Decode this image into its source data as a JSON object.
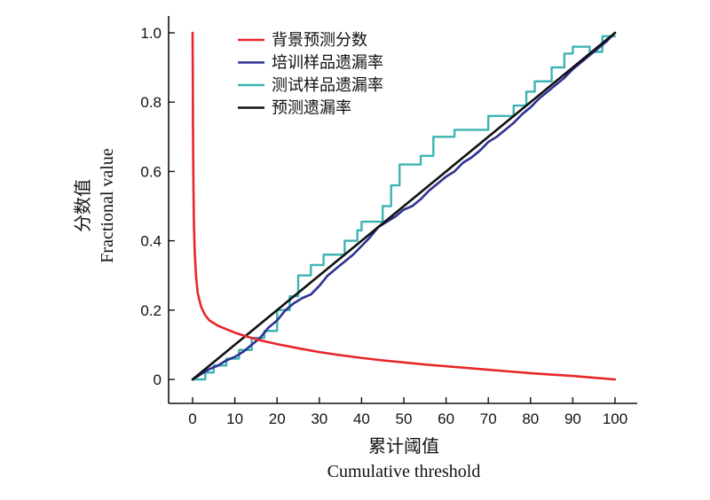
{
  "chart_data": {
    "type": "line",
    "xlabel_cn": "累计阈值",
    "xlabel_en": "Cumulative threshold",
    "ylabel_cn": "分数值",
    "ylabel_en": "Fractional value",
    "xlim": [
      0,
      100
    ],
    "ylim": [
      0,
      1.0
    ],
    "x_ticks": [
      0,
      10,
      20,
      30,
      40,
      50,
      60,
      70,
      80,
      90,
      100
    ],
    "x_tick_labels": [
      "0",
      "10",
      "20",
      "30",
      "40",
      "50",
      "60",
      "70",
      "80",
      "90",
      "100"
    ],
    "y_ticks": [
      0,
      0.2,
      0.4,
      0.6,
      0.8,
      1.0
    ],
    "y_tick_labels": [
      "0",
      "0.2",
      "0.4",
      "0.6",
      "0.8",
      "1.0"
    ],
    "grid": false,
    "legend_position": "top-left",
    "series": [
      {
        "name": "背景预测分数",
        "color": "#e8262a",
        "points": [
          [
            0,
            1.0
          ],
          [
            0.05,
            0.88
          ],
          [
            0.1,
            0.72
          ],
          [
            0.2,
            0.56
          ],
          [
            0.3,
            0.46
          ],
          [
            0.5,
            0.37
          ],
          [
            0.8,
            0.3
          ],
          [
            1.2,
            0.25
          ],
          [
            2,
            0.21
          ],
          [
            3,
            0.185
          ],
          [
            4,
            0.17
          ],
          [
            6,
            0.155
          ],
          [
            8,
            0.145
          ],
          [
            10,
            0.135
          ],
          [
            13,
            0.123
          ],
          [
            16,
            0.113
          ],
          [
            20,
            0.102
          ],
          [
            25,
            0.09
          ],
          [
            30,
            0.079
          ],
          [
            35,
            0.07
          ],
          [
            40,
            0.062
          ],
          [
            45,
            0.055
          ],
          [
            50,
            0.049
          ],
          [
            55,
            0.043
          ],
          [
            60,
            0.038
          ],
          [
            65,
            0.033
          ],
          [
            70,
            0.028
          ],
          [
            75,
            0.023
          ],
          [
            80,
            0.018
          ],
          [
            85,
            0.014
          ],
          [
            90,
            0.01
          ],
          [
            95,
            0.005
          ],
          [
            100,
            0.0
          ]
        ]
      },
      {
        "name": "培训样品遗漏率",
        "color": "#2e3192",
        "points": [
          [
            0,
            0
          ],
          [
            2,
            0.015
          ],
          [
            4,
            0.03
          ],
          [
            6,
            0.04
          ],
          [
            8,
            0.055
          ],
          [
            10,
            0.065
          ],
          [
            12,
            0.08
          ],
          [
            14,
            0.1
          ],
          [
            16,
            0.12
          ],
          [
            18,
            0.15
          ],
          [
            20,
            0.17
          ],
          [
            22,
            0.2
          ],
          [
            24,
            0.22
          ],
          [
            26,
            0.235
          ],
          [
            28,
            0.245
          ],
          [
            30,
            0.27
          ],
          [
            32,
            0.3
          ],
          [
            34,
            0.32
          ],
          [
            36,
            0.34
          ],
          [
            38,
            0.36
          ],
          [
            40,
            0.385
          ],
          [
            42,
            0.41
          ],
          [
            44,
            0.44
          ],
          [
            46,
            0.455
          ],
          [
            48,
            0.47
          ],
          [
            50,
            0.49
          ],
          [
            52,
            0.5
          ],
          [
            54,
            0.52
          ],
          [
            56,
            0.545
          ],
          [
            58,
            0.565
          ],
          [
            60,
            0.585
          ],
          [
            62,
            0.6
          ],
          [
            64,
            0.625
          ],
          [
            66,
            0.64
          ],
          [
            68,
            0.66
          ],
          [
            70,
            0.685
          ],
          [
            72,
            0.7
          ],
          [
            74,
            0.72
          ],
          [
            76,
            0.74
          ],
          [
            78,
            0.765
          ],
          [
            80,
            0.785
          ],
          [
            82,
            0.81
          ],
          [
            84,
            0.83
          ],
          [
            86,
            0.85
          ],
          [
            88,
            0.87
          ],
          [
            90,
            0.895
          ],
          [
            92,
            0.915
          ],
          [
            94,
            0.935
          ],
          [
            96,
            0.955
          ],
          [
            98,
            0.975
          ],
          [
            100,
            1.0
          ]
        ]
      },
      {
        "name": "测试样品遗漏率",
        "color": "#3cb4b1",
        "points": [
          [
            0,
            0
          ],
          [
            3,
            0
          ],
          [
            3,
            0.02
          ],
          [
            5,
            0.02
          ],
          [
            5,
            0.04
          ],
          [
            8,
            0.04
          ],
          [
            8,
            0.06
          ],
          [
            11,
            0.06
          ],
          [
            11,
            0.085
          ],
          [
            14,
            0.085
          ],
          [
            14,
            0.12
          ],
          [
            17,
            0.12
          ],
          [
            17,
            0.14
          ],
          [
            20,
            0.14
          ],
          [
            20,
            0.2
          ],
          [
            23,
            0.2
          ],
          [
            23,
            0.24
          ],
          [
            25,
            0.24
          ],
          [
            25,
            0.3
          ],
          [
            28,
            0.3
          ],
          [
            28,
            0.33
          ],
          [
            31,
            0.33
          ],
          [
            31,
            0.36
          ],
          [
            36,
            0.36
          ],
          [
            36,
            0.4
          ],
          [
            39,
            0.4
          ],
          [
            39,
            0.43
          ],
          [
            40,
            0.43
          ],
          [
            40,
            0.455
          ],
          [
            45,
            0.455
          ],
          [
            45,
            0.5
          ],
          [
            47,
            0.5
          ],
          [
            47,
            0.56
          ],
          [
            49,
            0.56
          ],
          [
            49,
            0.62
          ],
          [
            54,
            0.62
          ],
          [
            54,
            0.645
          ],
          [
            57,
            0.645
          ],
          [
            57,
            0.7
          ],
          [
            62,
            0.7
          ],
          [
            62,
            0.72
          ],
          [
            70,
            0.72
          ],
          [
            70,
            0.76
          ],
          [
            76,
            0.76
          ],
          [
            76,
            0.79
          ],
          [
            79,
            0.79
          ],
          [
            79,
            0.83
          ],
          [
            81,
            0.83
          ],
          [
            81,
            0.86
          ],
          [
            85,
            0.86
          ],
          [
            85,
            0.9
          ],
          [
            88,
            0.9
          ],
          [
            88,
            0.94
          ],
          [
            90,
            0.94
          ],
          [
            90,
            0.96
          ],
          [
            94,
            0.96
          ],
          [
            94,
            0.945
          ],
          [
            97,
            0.945
          ],
          [
            97,
            0.99
          ],
          [
            100,
            0.99
          ]
        ]
      },
      {
        "name": "预测遗漏率",
        "color": "#111111",
        "points": [
          [
            0,
            0
          ],
          [
            100,
            1.0
          ]
        ]
      }
    ]
  }
}
